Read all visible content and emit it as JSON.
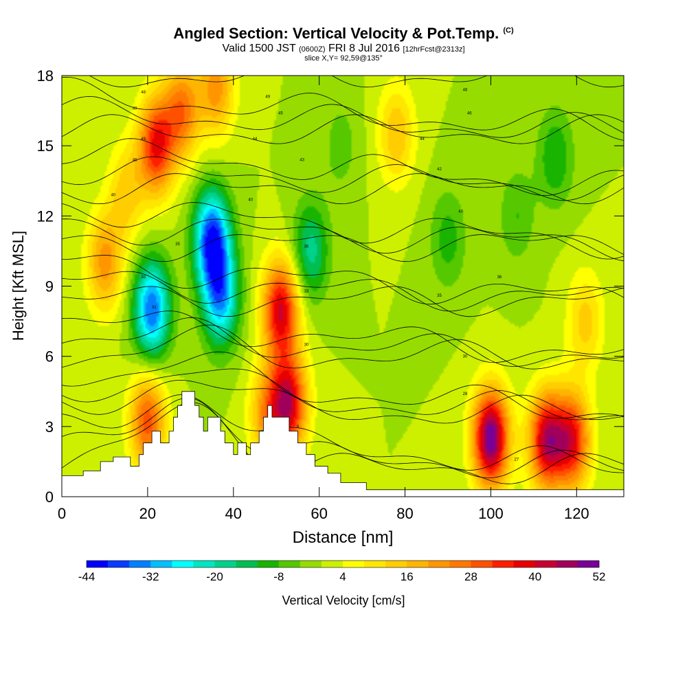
{
  "header": {
    "title": "Angled Section: Vertical Velocity & Pot.Temp.",
    "title_mark": "(C)",
    "valid_prefix": "Valid 1500 JST",
    "valid_utc": "(0600Z)",
    "valid_date": "FRI 8 Jul 2016",
    "forecast": "[12hrFcst@2313z]",
    "slice": "slice X,Y= 92,59@135°"
  },
  "chart_data": {
    "type": "heatmap",
    "xlabel": "Distance [nm]",
    "ylabel": "Height [Kft MSL]",
    "xlim": [
      0,
      131
    ],
    "ylim": [
      0,
      18
    ],
    "xticks": [
      0,
      20,
      40,
      60,
      80,
      100,
      120
    ],
    "yticks": [
      0,
      3,
      6,
      9,
      12,
      15,
      18
    ],
    "colorbar": {
      "label": "Vertical Velocity [cm/s]",
      "tick_labels": [
        "-44",
        "-32",
        "-20",
        "-8",
        "4",
        "16",
        "28",
        "40",
        "52"
      ],
      "colors": [
        "#0000ff",
        "#0a3cff",
        "#0080ff",
        "#00c0ff",
        "#00ffff",
        "#00e6c0",
        "#00d28c",
        "#00be50",
        "#19b400",
        "#55c800",
        "#96dc00",
        "#cdf000",
        "#ffff00",
        "#ffe600",
        "#ffcd00",
        "#ffb400",
        "#ff9600",
        "#ff7800",
        "#ff5000",
        "#ff1e00",
        "#e60000",
        "#c80032",
        "#a0005a",
        "#780096"
      ]
    },
    "field_centers": [
      {
        "x": 21,
        "y": 8,
        "value": -36
      },
      {
        "x": 35,
        "y": 11,
        "value": -40
      },
      {
        "x": 37,
        "y": 8.5,
        "value": -30
      },
      {
        "x": 58,
        "y": 10.5,
        "value": -18
      },
      {
        "x": 22,
        "y": 15,
        "value": 36
      },
      {
        "x": 28,
        "y": 16.5,
        "value": 26
      },
      {
        "x": 36,
        "y": 17.5,
        "value": 22
      },
      {
        "x": 51,
        "y": 8,
        "value": 40
      },
      {
        "x": 53,
        "y": 4,
        "value": 40
      },
      {
        "x": 10,
        "y": 10,
        "value": 22
      },
      {
        "x": 20,
        "y": 3.2,
        "value": 30
      },
      {
        "x": 15,
        "y": 13,
        "value": 14
      },
      {
        "x": 78,
        "y": 15.5,
        "value": 16
      },
      {
        "x": 100,
        "y": 2.5,
        "value": 52
      },
      {
        "x": 113,
        "y": 2.4,
        "value": 42
      },
      {
        "x": 119,
        "y": 2.4,
        "value": 36
      },
      {
        "x": 90,
        "y": 11,
        "value": -10
      },
      {
        "x": 115,
        "y": 14.5,
        "value": -12
      },
      {
        "x": 106,
        "y": 12,
        "value": -8
      },
      {
        "x": 122,
        "y": 7.5,
        "value": 14
      },
      {
        "x": 48,
        "y": 3.5,
        "value": 22
      },
      {
        "x": 65,
        "y": 15,
        "value": -6
      }
    ],
    "terrain_profile": [
      [
        0,
        0.9
      ],
      [
        5,
        0.9
      ],
      [
        5,
        1.1
      ],
      [
        9,
        1.1
      ],
      [
        9,
        1.5
      ],
      [
        12,
        1.5
      ],
      [
        12,
        1.7
      ],
      [
        16,
        1.7
      ],
      [
        16,
        1.3
      ],
      [
        18,
        1.3
      ],
      [
        18,
        1.8
      ],
      [
        19,
        1.8
      ],
      [
        19,
        2.3
      ],
      [
        21,
        2.3
      ],
      [
        21,
        2.8
      ],
      [
        23,
        2.8
      ],
      [
        23,
        2.3
      ],
      [
        25,
        2.3
      ],
      [
        25,
        2.8
      ],
      [
        26,
        2.8
      ],
      [
        26,
        3.4
      ],
      [
        27,
        3.4
      ],
      [
        27,
        3.9
      ],
      [
        28,
        3.9
      ],
      [
        28,
        4.5
      ],
      [
        31,
        4.5
      ],
      [
        31,
        3.9
      ],
      [
        32,
        3.9
      ],
      [
        32,
        3.4
      ],
      [
        33,
        3.4
      ],
      [
        33,
        2.8
      ],
      [
        34,
        2.8
      ],
      [
        34,
        3.4
      ],
      [
        37,
        3.4
      ],
      [
        37,
        2.8
      ],
      [
        38,
        2.8
      ],
      [
        38,
        2.3
      ],
      [
        40,
        2.3
      ],
      [
        40,
        1.8
      ],
      [
        41,
        1.8
      ],
      [
        41,
        2.3
      ],
      [
        43,
        2.3
      ],
      [
        43,
        1.8
      ],
      [
        44,
        1.8
      ],
      [
        44,
        2.3
      ],
      [
        46,
        2.3
      ],
      [
        46,
        2.8
      ],
      [
        47,
        2.8
      ],
      [
        47,
        3.4
      ],
      [
        48,
        3.4
      ],
      [
        48,
        3.9
      ],
      [
        49,
        3.9
      ],
      [
        49,
        3.4
      ],
      [
        53,
        3.4
      ],
      [
        53,
        2.8
      ],
      [
        55,
        2.8
      ],
      [
        55,
        2.3
      ],
      [
        57,
        2.3
      ],
      [
        57,
        1.8
      ],
      [
        59,
        1.8
      ],
      [
        59,
        1.3
      ],
      [
        62,
        1.3
      ],
      [
        62,
        1.0
      ],
      [
        65,
        1.0
      ],
      [
        65,
        0.6
      ],
      [
        71,
        0.6
      ],
      [
        71,
        0.3
      ],
      [
        131,
        0.3
      ]
    ],
    "isentropes": {
      "base_level": 22,
      "interval": 1,
      "count": 22,
      "labels": [
        {
          "x": 19,
          "y": 9.4,
          "text": "30"
        },
        {
          "x": 21.5,
          "y": 8.1,
          "text": "31"
        },
        {
          "x": 27,
          "y": 10.8,
          "text": "35"
        },
        {
          "x": 12,
          "y": 12.9,
          "text": "40"
        },
        {
          "x": 17,
          "y": 14.4,
          "text": "46"
        },
        {
          "x": 17,
          "y": 16.6,
          "text": "48"
        },
        {
          "x": 19,
          "y": 15.3,
          "text": "49"
        },
        {
          "x": 19,
          "y": 17.3,
          "text": "48"
        },
        {
          "x": 44,
          "y": 12.7,
          "text": "40"
        },
        {
          "x": 48,
          "y": 17.1,
          "text": "49"
        },
        {
          "x": 45,
          "y": 15.3,
          "text": "44"
        },
        {
          "x": 51,
          "y": 16.4,
          "text": "45"
        },
        {
          "x": 56,
          "y": 14.4,
          "text": "43"
        },
        {
          "x": 57,
          "y": 10.7,
          "text": "36"
        },
        {
          "x": 57,
          "y": 8.8,
          "text": "33"
        },
        {
          "x": 57,
          "y": 6.5,
          "text": "30"
        },
        {
          "x": 55,
          "y": 3.0,
          "text": "8"
        },
        {
          "x": 84,
          "y": 15.3,
          "text": "44"
        },
        {
          "x": 88,
          "y": 14.0,
          "text": "42"
        },
        {
          "x": 94,
          "y": 17.4,
          "text": "48"
        },
        {
          "x": 95,
          "y": 16.4,
          "text": "46"
        },
        {
          "x": 93,
          "y": 12.2,
          "text": "40"
        },
        {
          "x": 88,
          "y": 8.6,
          "text": "35"
        },
        {
          "x": 102,
          "y": 9.4,
          "text": "36"
        },
        {
          "x": 94,
          "y": 6.0,
          "text": "30"
        },
        {
          "x": 94,
          "y": 4.4,
          "text": "28"
        },
        {
          "x": 106,
          "y": 1.6,
          "text": "27"
        }
      ]
    }
  }
}
